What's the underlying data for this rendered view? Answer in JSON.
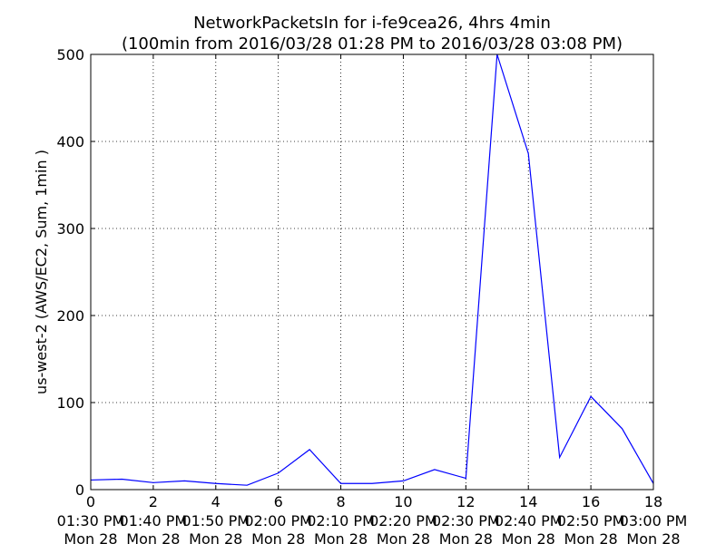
{
  "chart_data": {
    "type": "line",
    "title_line1": "NetworkPacketsIn for i-fe9cea26, 4hrs 4min",
    "title_line2": "(100min from 2016/03/28 01:28 PM to 2016/03/28 03:08 PM)",
    "xlabel": "",
    "ylabel": "us-west-2 (AWS/EC2, Sum, 1min )",
    "xlim": [
      0,
      18
    ],
    "ylim": [
      0,
      500
    ],
    "grid": true,
    "x_ticks": [
      0,
      2,
      4,
      6,
      8,
      10,
      12,
      14,
      16,
      18
    ],
    "y_ticks": [
      0,
      100,
      200,
      300,
      400,
      500
    ],
    "x_top_labels": [
      "01:30 PM",
      "01:40 PM",
      "01:50 PM",
      "02:00 PM",
      "02:10 PM",
      "02:20 PM",
      "02:30 PM",
      "02:40 PM",
      "02:50 PM",
      "03:00 PM"
    ],
    "x_bottom_labels": [
      "Mon 28",
      "Mon 28",
      "Mon 28",
      "Mon 28",
      "Mon 28",
      "Mon 28",
      "Mon 28",
      "Mon 28",
      "Mon 28",
      "Mon 28"
    ],
    "series": [
      {
        "color": "#0000ff",
        "x": [
          0,
          1,
          2,
          3,
          4,
          5,
          6,
          7,
          8,
          9,
          10,
          11,
          12,
          13,
          14,
          15,
          16,
          17,
          18
        ],
        "values": [
          11,
          12,
          8,
          10,
          7,
          5,
          19,
          46,
          7,
          7,
          10,
          23,
          13,
          500,
          386,
          37,
          107,
          70,
          7
        ]
      }
    ]
  }
}
